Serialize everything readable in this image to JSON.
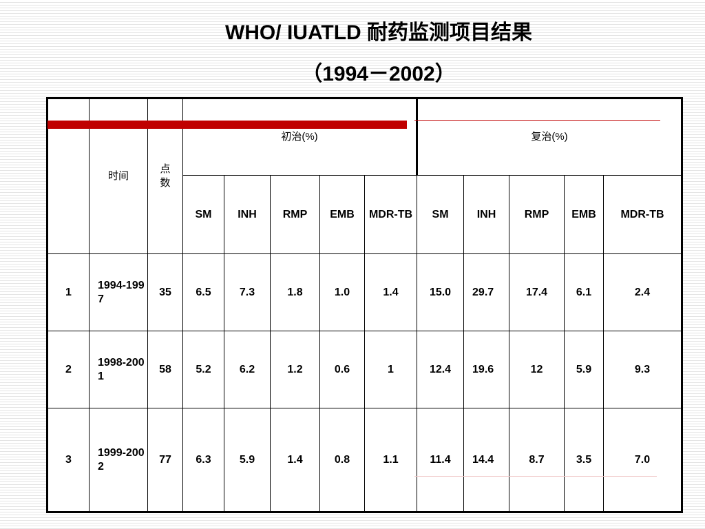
{
  "title": {
    "line1": "WHO/ IUATLD 耐药监测项目结果",
    "line2": "（1994－2002）"
  },
  "table": {
    "headers": {
      "time": "时间",
      "points": "点数",
      "initial_group": "初治(%)",
      "retreat_group": "复治(%)",
      "initial_drugs": [
        "SM",
        "INH",
        "RMP",
        "EMB",
        "MDR-TB"
      ],
      "retreat_drugs": [
        "SM",
        "INH",
        "RMP",
        "EMB",
        "MDR-TB"
      ]
    },
    "rows": [
      {
        "index": "1",
        "period": "1994-1997",
        "points": "35",
        "initial": [
          "6.5",
          "7.3",
          "1.8",
          "1.0",
          "1.4"
        ],
        "retreat": [
          "15.0",
          "29.7",
          "17.4",
          "6.1",
          "2.4"
        ]
      },
      {
        "index": "2",
        "period": "1998-2001",
        "points": "58",
        "initial": [
          "5.2",
          "6.2",
          "1.2",
          "0.6",
          "1"
        ],
        "retreat": [
          "12.4",
          "19.6",
          "12",
          "5.9",
          "9.3"
        ]
      },
      {
        "index": "3",
        "period": "1999-2002",
        "points": "77",
        "initial": [
          "6.3",
          "5.9",
          "1.4",
          "0.8",
          "1.1"
        ],
        "retreat": [
          "11.4",
          "14.4",
          "8.7",
          "3.5",
          "7.0"
        ]
      }
    ]
  },
  "colors": {
    "accent_red": "#c00000",
    "page_stripe": "#e4e4e4"
  }
}
